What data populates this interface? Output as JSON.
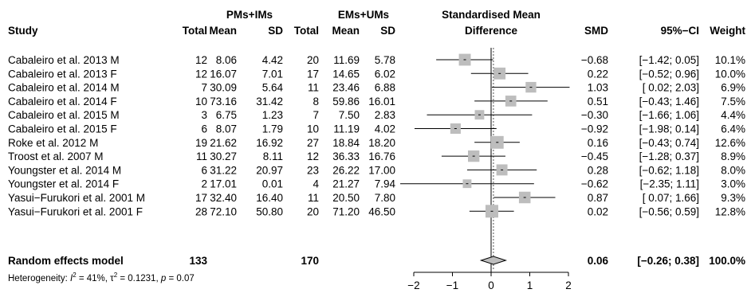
{
  "chart_data": {
    "type": "forest",
    "headers": {
      "group1": "PMs+IMs",
      "group2": "EMs+UMs",
      "plot_title_line1": "Standardised Mean",
      "plot_title_line2": "Difference",
      "study": "Study",
      "total": "Total",
      "mean": "Mean",
      "sd": "SD",
      "smd": "SMD",
      "ci": "95%−CI",
      "weight": "Weight"
    },
    "xlim": [
      -2.5,
      2.5
    ],
    "xticks": [
      -2,
      -1,
      0,
      1,
      2
    ],
    "xtick_labels": [
      "−2",
      "−1",
      "0",
      "1",
      "2"
    ],
    "studies": [
      {
        "study": "Cabaleiro et al. 2013 M",
        "total1": "12",
        "mean1": "8.06",
        "sd1": "4.42",
        "total2": "20",
        "mean2": "11.69",
        "sd2": "5.78",
        "smd": -0.68,
        "lo": -1.42,
        "hi": 0.05,
        "smd_text": "−0.68",
        "ci_text": "[−1.42; 0.05]",
        "weight": 10.1,
        "weight_text": "10.1%"
      },
      {
        "study": "Cabaleiro et al. 2013 F",
        "total1": "12",
        "mean1": "16.07",
        "sd1": "7.01",
        "total2": "17",
        "mean2": "14.65",
        "sd2": "6.02",
        "smd": 0.22,
        "lo": -0.52,
        "hi": 0.96,
        "smd_text": "0.22",
        "ci_text": "[−0.52; 0.96]",
        "weight": 10.0,
        "weight_text": "10.0%"
      },
      {
        "study": "Cabaleiro et al. 2014 M",
        "total1": "7",
        "mean1": "30.09",
        "sd1": "5.64",
        "total2": "11",
        "mean2": "23.46",
        "sd2": "6.88",
        "smd": 1.03,
        "lo": 0.02,
        "hi": 2.03,
        "smd_text": "1.03",
        "ci_text": "[ 0.02; 2.03]",
        "weight": 6.9,
        "weight_text": "6.9%"
      },
      {
        "study": "Cabaleiro et al. 2014 F",
        "total1": "10",
        "mean1": "73.16",
        "sd1": "31.42",
        "total2": "8",
        "mean2": "59.86",
        "sd2": "16.01",
        "smd": 0.51,
        "lo": -0.43,
        "hi": 1.46,
        "smd_text": "0.51",
        "ci_text": "[−0.43; 1.46]",
        "weight": 7.5,
        "weight_text": "7.5%"
      },
      {
        "study": "Cabaleiro et al. 2015 M",
        "total1": "3",
        "mean1": "6.75",
        "sd1": "1.23",
        "total2": "7",
        "mean2": "7.50",
        "sd2": "2.83",
        "smd": -0.3,
        "lo": -1.66,
        "hi": 1.06,
        "smd_text": "−0.30",
        "ci_text": "[−1.66; 1.06]",
        "weight": 4.4,
        "weight_text": "4.4%"
      },
      {
        "study": "Cabaleiro et al. 2015 F",
        "total1": "6",
        "mean1": "8.07",
        "sd1": "1.79",
        "total2": "10",
        "mean2": "11.19",
        "sd2": "4.02",
        "smd": -0.92,
        "lo": -1.98,
        "hi": 0.14,
        "smd_text": "−0.92",
        "ci_text": "[−1.98; 0.14]",
        "weight": 6.4,
        "weight_text": "6.4%"
      },
      {
        "study": "Roke et al. 2012 M",
        "total1": "19",
        "mean1": "21.62",
        "sd1": "16.92",
        "total2": "27",
        "mean2": "18.84",
        "sd2": "18.20",
        "smd": 0.16,
        "lo": -0.43,
        "hi": 0.74,
        "smd_text": "0.16",
        "ci_text": "[−0.43; 0.74]",
        "weight": 12.6,
        "weight_text": "12.6%"
      },
      {
        "study": "Troost et al. 2007 M",
        "total1": "11",
        "mean1": "30.27",
        "sd1": "8.11",
        "total2": "12",
        "mean2": "36.33",
        "sd2": "16.76",
        "smd": -0.45,
        "lo": -1.28,
        "hi": 0.37,
        "smd_text": "−0.45",
        "ci_text": "[−1.28; 0.37]",
        "weight": 8.9,
        "weight_text": "8.9%"
      },
      {
        "study": "Youngster et al. 2014 M",
        "total1": "6",
        "mean1": "31.22",
        "sd1": "20.97",
        "total2": "23",
        "mean2": "26.22",
        "sd2": "17.00",
        "smd": 0.28,
        "lo": -0.62,
        "hi": 1.18,
        "smd_text": "0.28",
        "ci_text": "[−0.62; 1.18]",
        "weight": 8.0,
        "weight_text": "8.0%"
      },
      {
        "study": "Youngster et al. 2014 F",
        "total1": "2",
        "mean1": "17.01",
        "sd1": "0.01",
        "total2": "4",
        "mean2": "21.27",
        "sd2": "7.94",
        "smd": -0.62,
        "lo": -2.35,
        "hi": 1.11,
        "smd_text": "−0.62",
        "ci_text": "[−2.35; 1.11]",
        "weight": 3.0,
        "weight_text": "3.0%"
      },
      {
        "study": "Yasui−Furukori et al. 2001 M",
        "total1": "17",
        "mean1": "32.40",
        "sd1": "16.40",
        "total2": "11",
        "mean2": "20.50",
        "sd2": "7.80",
        "smd": 0.87,
        "lo": 0.07,
        "hi": 1.66,
        "smd_text": "0.87",
        "ci_text": "[ 0.07; 1.66]",
        "weight": 9.3,
        "weight_text": "9.3%"
      },
      {
        "study": "Yasui−Furukori et al. 2001 F",
        "total1": "28",
        "mean1": "72.10",
        "sd1": "50.80",
        "total2": "20",
        "mean2": "71.20",
        "sd2": "46.50",
        "smd": 0.02,
        "lo": -0.56,
        "hi": 0.59,
        "smd_text": "0.02",
        "ci_text": "[−0.56; 0.59]",
        "weight": 12.8,
        "weight_text": "12.8%"
      }
    ],
    "summary": {
      "label": "Random effects model",
      "total1": "133",
      "total2": "170",
      "smd": 0.06,
      "lo": -0.26,
      "hi": 0.38,
      "smd_text": "0.06",
      "ci_text": "[−0.26; 0.38]",
      "weight_text": "100.0%"
    },
    "heterogeneity": {
      "prefix": "Heterogeneity: ",
      "i2_symbol": "I",
      "i2_value": " = 41%, ",
      "tau_symbol": "τ",
      "tau_value": " = 0.1231, ",
      "p_symbol": "p",
      "p_value": " = 0.07"
    }
  }
}
